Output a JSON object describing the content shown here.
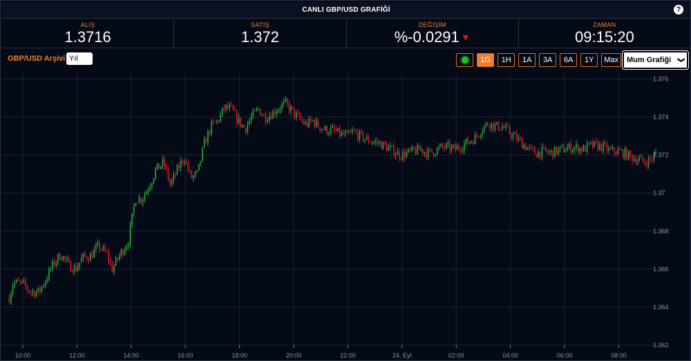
{
  "title": "CANLI GBP/USD GRAFİĞİ",
  "help_icon": "?",
  "quotes": [
    {
      "label": "ALIŞ",
      "value": "1.3716"
    },
    {
      "label": "SATIŞ",
      "value": "1.372"
    },
    {
      "label": "DEĞİŞİM",
      "value": "%-0.0291"
    },
    {
      "label": "ZAMAN",
      "value": "09:15:20"
    }
  ],
  "toolbar": {
    "archive_label": "GBP/USD Arşivi",
    "year_value": "Yıl",
    "ranges": [
      "1G",
      "1H",
      "1A",
      "3A",
      "6A",
      "1Y",
      "Max"
    ],
    "active_range": "1G",
    "chart_type": "Mum Grafiği"
  },
  "colors": {
    "up": "#27a844",
    "down": "#e0142c",
    "accent": "#f07f2c",
    "bg": "#050a17"
  },
  "chart_data": {
    "type": "candlestick",
    "x_ticks": [
      "10:00",
      "12:00",
      "14:00",
      "16:00",
      "18:00",
      "20:00",
      "22:00",
      "24. Eyl",
      "02:00",
      "04:00",
      "06:00",
      "08:00"
    ],
    "y_ticks": [
      "1.376",
      "1.374",
      "1.372",
      "1.37",
      "1.368",
      "1.366",
      "1.364",
      "1.362"
    ],
    "ylim": [
      1.362,
      1.3762
    ],
    "x_start_hour": 9.5,
    "x_end_hour": 33.4,
    "anchors": [
      [
        9.5,
        1.3645
      ],
      [
        9.65,
        1.3653
      ],
      [
        10.0,
        1.3652
      ],
      [
        10.3,
        1.3648
      ],
      [
        10.6,
        1.3648
      ],
      [
        10.9,
        1.3656
      ],
      [
        11.1,
        1.3662
      ],
      [
        11.4,
        1.3668
      ],
      [
        11.7,
        1.3662
      ],
      [
        11.95,
        1.366
      ],
      [
        12.2,
        1.3666
      ],
      [
        12.5,
        1.3667
      ],
      [
        12.8,
        1.3672
      ],
      [
        13.1,
        1.3668
      ],
      [
        13.3,
        1.366
      ],
      [
        13.6,
        1.3668
      ],
      [
        13.9,
        1.3675
      ],
      [
        14.15,
        1.3697
      ],
      [
        14.4,
        1.3697
      ],
      [
        14.7,
        1.3705
      ],
      [
        14.9,
        1.3712
      ],
      [
        15.2,
        1.3716
      ],
      [
        15.45,
        1.3704
      ],
      [
        15.7,
        1.3712
      ],
      [
        15.95,
        1.3719
      ],
      [
        16.2,
        1.3708
      ],
      [
        16.45,
        1.371
      ],
      [
        16.7,
        1.3726
      ],
      [
        16.95,
        1.3735
      ],
      [
        17.2,
        1.3738
      ],
      [
        17.45,
        1.3745
      ],
      [
        17.7,
        1.3744
      ],
      [
        17.95,
        1.3738
      ],
      [
        18.2,
        1.3734
      ],
      [
        18.45,
        1.374
      ],
      [
        18.7,
        1.3744
      ],
      [
        18.95,
        1.374
      ],
      [
        19.2,
        1.3742
      ],
      [
        19.45,
        1.3745
      ],
      [
        19.7,
        1.3747
      ],
      [
        19.95,
        1.3743
      ],
      [
        20.2,
        1.3739
      ],
      [
        20.45,
        1.3736
      ],
      [
        20.7,
        1.3738
      ],
      [
        20.95,
        1.3735
      ],
      [
        21.2,
        1.3733
      ],
      [
        21.45,
        1.3733
      ],
      [
        21.7,
        1.3731
      ],
      [
        21.95,
        1.373
      ],
      [
        22.2,
        1.3732
      ],
      [
        22.45,
        1.373
      ],
      [
        22.7,
        1.3728
      ],
      [
        22.95,
        1.3727
      ],
      [
        23.2,
        1.3726
      ],
      [
        23.45,
        1.3724
      ],
      [
        23.7,
        1.3722
      ],
      [
        23.95,
        1.372
      ],
      [
        24.2,
        1.3721
      ],
      [
        24.45,
        1.3722
      ],
      [
        24.7,
        1.3723
      ],
      [
        24.95,
        1.3721
      ],
      [
        25.2,
        1.3722
      ],
      [
        25.45,
        1.3724
      ],
      [
        25.7,
        1.3724
      ],
      [
        25.95,
        1.3723
      ],
      [
        26.2,
        1.3725
      ],
      [
        26.45,
        1.3727
      ],
      [
        26.7,
        1.3729
      ],
      [
        26.95,
        1.3734
      ],
      [
        27.2,
        1.3737
      ],
      [
        27.45,
        1.3735
      ],
      [
        27.7,
        1.3735
      ],
      [
        27.95,
        1.3732
      ],
      [
        28.2,
        1.3729
      ],
      [
        28.45,
        1.3726
      ],
      [
        28.7,
        1.3723
      ],
      [
        28.95,
        1.3721
      ],
      [
        29.2,
        1.3722
      ],
      [
        29.45,
        1.3721
      ],
      [
        29.7,
        1.3722
      ],
      [
        29.95,
        1.3723
      ],
      [
        30.2,
        1.3724
      ],
      [
        30.45,
        1.3724
      ],
      [
        30.7,
        1.3723
      ],
      [
        30.95,
        1.3725
      ],
      [
        31.2,
        1.3725
      ],
      [
        31.45,
        1.3724
      ],
      [
        31.7,
        1.3722
      ],
      [
        31.95,
        1.3722
      ],
      [
        32.2,
        1.3721
      ],
      [
        32.45,
        1.3719
      ],
      [
        32.7,
        1.3718
      ],
      [
        32.95,
        1.3716
      ],
      [
        33.2,
        1.3718
      ],
      [
        33.4,
        1.3721
      ]
    ]
  }
}
